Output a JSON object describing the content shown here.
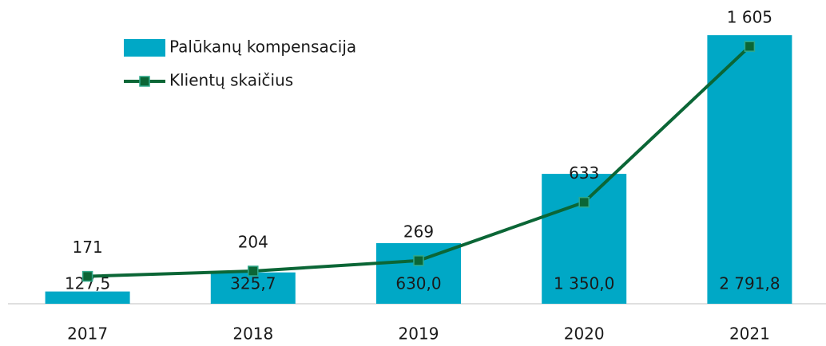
{
  "chart_data": {
    "type": "bar-line",
    "categories": [
      "2017",
      "2018",
      "2019",
      "2020",
      "2021"
    ],
    "series": [
      {
        "name": "Palūkanų kompensacija",
        "type": "bar",
        "color": "#00a8c6",
        "values": [
          127.5,
          325.7,
          630.0,
          1350.0,
          2791.8
        ],
        "value_labels": [
          "127,5",
          "325,7",
          "630,0",
          "1 350,0",
          "2 791,8"
        ]
      },
      {
        "name": "Klientų skaičius",
        "type": "line",
        "axis": "y2",
        "color": "#0b6636",
        "values": [
          171,
          204,
          269,
          633,
          1605
        ],
        "value_labels": [
          "171",
          "204",
          "269",
          "633",
          "1 605"
        ]
      }
    ],
    "ylim": [
      0,
      3000
    ],
    "y2lim": [
      0,
      1800
    ],
    "grid": false
  }
}
